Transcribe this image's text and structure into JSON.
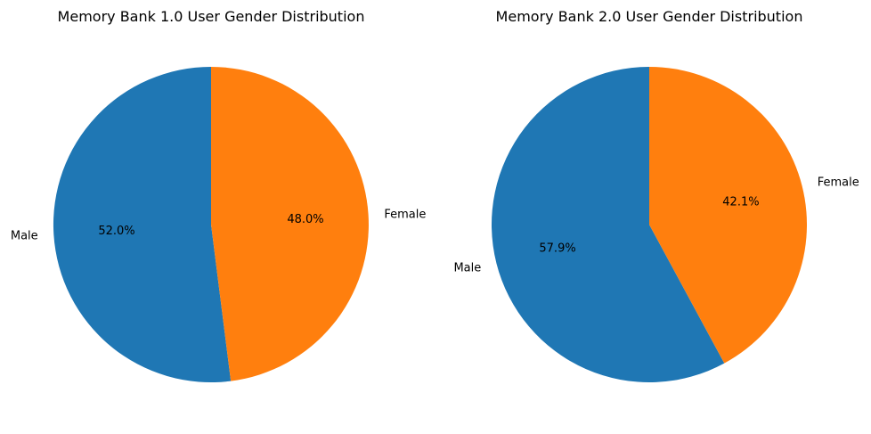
{
  "chart_data": [
    {
      "type": "pie",
      "title": "Memory Bank 1.0 User Gender Distribution",
      "categories": [
        "Male",
        "Female"
      ],
      "values": [
        52.0,
        48.0
      ],
      "value_labels": [
        "52.0%",
        "48.0%"
      ],
      "colors": [
        "#1f77b4",
        "#ff7f0e"
      ],
      "start_angle_deg": 90,
      "direction": "counterclockwise",
      "legend": "none"
    },
    {
      "type": "pie",
      "title": "Memory Bank 2.0 User Gender Distribution",
      "categories": [
        "Male",
        "Female"
      ],
      "values": [
        57.9,
        42.1
      ],
      "value_labels": [
        "57.9%",
        "42.1%"
      ],
      "colors": [
        "#1f77b4",
        "#ff7f0e"
      ],
      "start_angle_deg": 90,
      "direction": "counterclockwise",
      "legend": "none"
    }
  ]
}
